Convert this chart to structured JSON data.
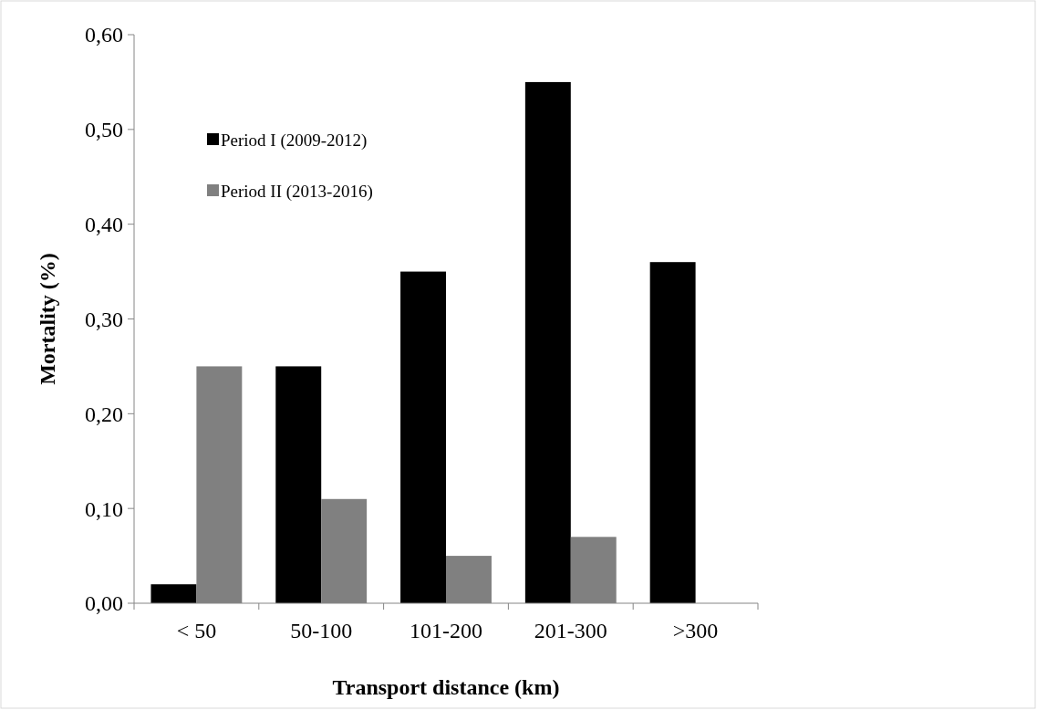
{
  "chart_data": {
    "type": "bar",
    "xlabel": "Transport distance (km)",
    "ylabel": "Mortality (%)",
    "categories": [
      "< 50",
      "50-100",
      "101-200",
      "201-300",
      ">300"
    ],
    "series": [
      {
        "name": "Period I (2009-2012)",
        "color": "#000000",
        "values": [
          0.02,
          0.25,
          0.35,
          0.55,
          0.36
        ]
      },
      {
        "name": "Period II (2013-2016)",
        "color": "#808080",
        "values": [
          0.25,
          0.11,
          0.05,
          0.07,
          0
        ]
      }
    ],
    "ylim": [
      0,
      0.6
    ],
    "yticks": [
      {
        "value": 0,
        "label": "0,00"
      },
      {
        "value": 0.1,
        "label": "0,10"
      },
      {
        "value": 0.2,
        "label": "0,20"
      },
      {
        "value": 0.3,
        "label": "0,30"
      },
      {
        "value": 0.4,
        "label": "0,40"
      },
      {
        "value": 0.5,
        "label": "0,50"
      },
      {
        "value": 0.6,
        "label": "0,60"
      }
    ],
    "grid": false,
    "legend": "top left"
  }
}
